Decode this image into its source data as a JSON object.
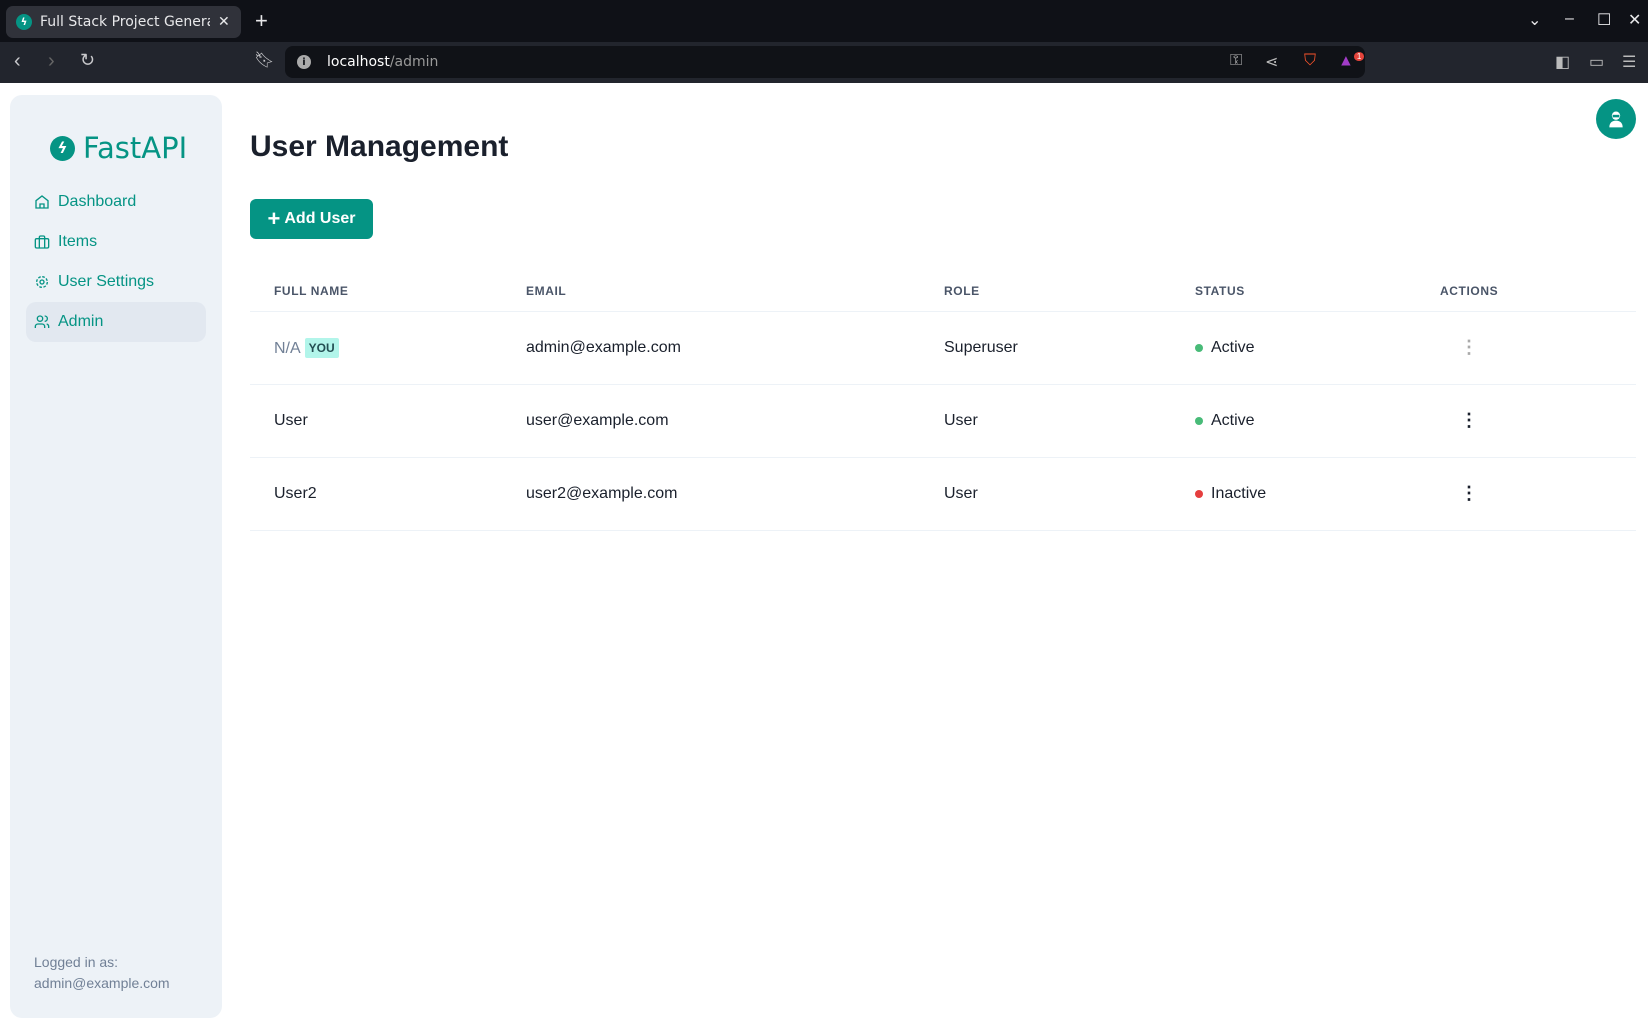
{
  "browser": {
    "tab_title": "Full Stack Project Generator",
    "url_host": "localhost",
    "url_path": "/admin",
    "notification_count": "1"
  },
  "colors": {
    "brand": "#059484",
    "active": "#48bb78",
    "inactive": "#e53e3e"
  },
  "sidebar": {
    "logo": "FastAPI",
    "items": [
      {
        "label": "Dashboard",
        "icon": "home-icon"
      },
      {
        "label": "Items",
        "icon": "briefcase-icon"
      },
      {
        "label": "User Settings",
        "icon": "gear-icon"
      },
      {
        "label": "Admin",
        "icon": "users-icon",
        "active": true
      }
    ],
    "logged_label": "Logged in as:",
    "logged_email": "admin@example.com"
  },
  "main": {
    "title": "User Management",
    "add_button": "Add User",
    "columns": [
      "FULL NAME",
      "EMAIL",
      "ROLE",
      "STATUS",
      "ACTIONS"
    ],
    "you_badge": "YOU",
    "rows": [
      {
        "name": "N/A",
        "email": "admin@example.com",
        "role": "Superuser",
        "status": "Active"
      },
      {
        "name": "User",
        "email": "user@example.com",
        "role": "User",
        "status": "Active"
      },
      {
        "name": "User2",
        "email": "user2@example.com",
        "role": "User",
        "status": "Inactive"
      }
    ]
  }
}
